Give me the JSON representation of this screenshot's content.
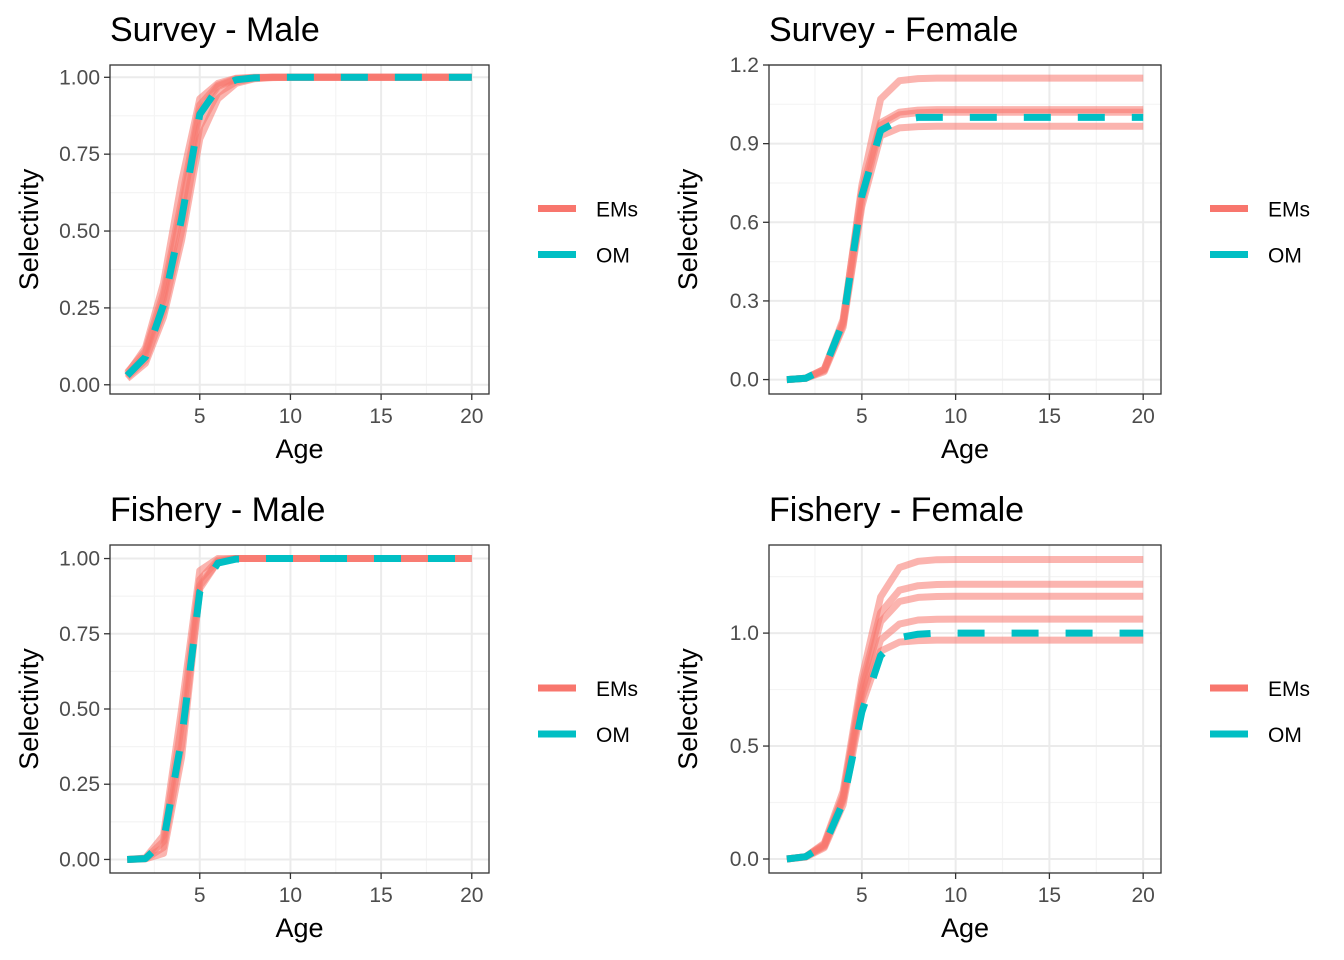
{
  "figure": {
    "colors": {
      "EMs": "#F8766D",
      "OM": "#00BFC4",
      "grid_major": "#EBEBEB",
      "grid_minor": "#F4F4F4",
      "frame": "#333333",
      "tick_text": "#4D4D4D"
    }
  },
  "chart_data": [
    {
      "type": "line",
      "title": "Survey - Male",
      "xlabel": "Age",
      "ylabel": "Selectivity",
      "xlim": [
        0.05,
        20.95
      ],
      "ylim": [
        -0.03,
        1.04
      ],
      "xticks": [
        5,
        10,
        15,
        20
      ],
      "xtick_labels": [
        "5",
        "10",
        "15",
        "20"
      ],
      "yticks": [
        0,
        0.25,
        0.5,
        0.75,
        1.0
      ],
      "ytick_labels": [
        "0.00",
        "0.25",
        "0.50",
        "0.75",
        "1.00"
      ],
      "grid": true,
      "legend": {
        "position": "right",
        "entries": [
          "EMs",
          "OM"
        ]
      },
      "x": [
        1,
        2,
        3,
        4,
        5,
        6,
        7,
        8,
        9,
        10,
        11,
        12,
        13,
        14,
        15,
        16,
        17,
        18,
        19,
        20
      ],
      "series": [
        {
          "name": "OM",
          "style": "dashed",
          "values": [
            0.03,
            0.09,
            0.26,
            0.54,
            0.88,
            0.965,
            0.992,
            0.998,
            1,
            1,
            1,
            1,
            1,
            1,
            1,
            1,
            1,
            1,
            1,
            1
          ]
        },
        {
          "name": "EMs",
          "values": [
            0.04,
            0.11,
            0.3,
            0.6,
            0.91,
            0.975,
            0.995,
            0.999,
            1,
            1,
            1,
            1,
            1,
            1,
            1,
            1,
            1,
            1,
            1,
            1
          ]
        },
        {
          "name": "EMs",
          "values": [
            0.03,
            0.1,
            0.28,
            0.57,
            0.89,
            0.97,
            0.993,
            0.998,
            1,
            1,
            1,
            1,
            1,
            1,
            1,
            1,
            1,
            1,
            1,
            1
          ]
        },
        {
          "name": "EMs",
          "values": [
            0.025,
            0.08,
            0.24,
            0.5,
            0.84,
            0.95,
            0.985,
            0.997,
            1,
            1,
            1,
            1,
            1,
            1,
            1,
            1,
            1,
            1,
            1,
            1
          ]
        },
        {
          "name": "EMs",
          "values": [
            0.02,
            0.07,
            0.22,
            0.47,
            0.8,
            0.93,
            0.98,
            0.995,
            0.999,
            1,
            1,
            1,
            1,
            1,
            1,
            1,
            1,
            1,
            1,
            1
          ]
        },
        {
          "name": "EMs",
          "values": [
            0.035,
            0.12,
            0.33,
            0.66,
            0.93,
            0.98,
            0.997,
            1,
            1,
            1,
            1,
            1,
            1,
            1,
            1,
            1,
            1,
            1,
            1,
            1
          ]
        }
      ]
    },
    {
      "type": "line",
      "title": "Survey - Female",
      "xlabel": "Age",
      "ylabel": "Selectivity",
      "xlim": [
        0.05,
        20.95
      ],
      "ylim": [
        -0.055,
        1.2
      ],
      "xticks": [
        5,
        10,
        15,
        20
      ],
      "xtick_labels": [
        "5",
        "10",
        "15",
        "20"
      ],
      "yticks": [
        0,
        0.3,
        0.6,
        0.9,
        1.2
      ],
      "ytick_labels": [
        "0.0",
        "0.3",
        "0.6",
        "0.9",
        "1.2"
      ],
      "grid": true,
      "legend": {
        "position": "right",
        "entries": [
          "EMs",
          "OM"
        ]
      },
      "x": [
        1,
        2,
        3,
        4,
        5,
        6,
        7,
        8,
        9,
        10,
        11,
        12,
        13,
        14,
        15,
        16,
        17,
        18,
        19,
        20
      ],
      "series": [
        {
          "name": "OM",
          "style": "dashed",
          "values": [
            0.0,
            0.005,
            0.04,
            0.22,
            0.7,
            0.95,
            0.99,
            1,
            1,
            1,
            1,
            1,
            1,
            1,
            1,
            1,
            1,
            1,
            1,
            1
          ]
        },
        {
          "name": "EMs",
          "values": [
            0.0,
            0.005,
            0.04,
            0.22,
            0.74,
            1.07,
            1.14,
            1.148,
            1.15,
            1.15,
            1.15,
            1.15,
            1.15,
            1.15,
            1.15,
            1.15,
            1.15,
            1.15,
            1.15,
            1.15
          ]
        },
        {
          "name": "EMs",
          "values": [
            0.0,
            0.005,
            0.04,
            0.23,
            0.72,
            0.98,
            1.02,
            1.028,
            1.03,
            1.03,
            1.03,
            1.03,
            1.03,
            1.03,
            1.03,
            1.03,
            1.03,
            1.03,
            1.03,
            1.03
          ]
        },
        {
          "name": "EMs",
          "values": [
            0.0,
            0.005,
            0.035,
            0.21,
            0.68,
            0.97,
            1.01,
            1.018,
            1.02,
            1.02,
            1.02,
            1.02,
            1.02,
            1.02,
            1.02,
            1.02,
            1.02,
            1.02,
            1.02,
            1.02
          ]
        },
        {
          "name": "EMs",
          "values": [
            0.0,
            0.005,
            0.03,
            0.2,
            0.66,
            0.93,
            0.96,
            0.965,
            0.966,
            0.966,
            0.966,
            0.966,
            0.966,
            0.966,
            0.966,
            0.966,
            0.966,
            0.966,
            0.966,
            0.966
          ]
        }
      ]
    },
    {
      "type": "line",
      "title": "Fishery - Male",
      "xlabel": "Age",
      "ylabel": "Selectivity",
      "xlim": [
        0.05,
        20.95
      ],
      "ylim": [
        -0.045,
        1.045
      ],
      "xticks": [
        5,
        10,
        15,
        20
      ],
      "xtick_labels": [
        "5",
        "10",
        "15",
        "20"
      ],
      "yticks": [
        0,
        0.25,
        0.5,
        0.75,
        1.0
      ],
      "ytick_labels": [
        "0.00",
        "0.25",
        "0.50",
        "0.75",
        "1.00"
      ],
      "grid": true,
      "legend": {
        "position": "right",
        "entries": [
          "EMs",
          "OM"
        ]
      },
      "x": [
        1,
        2,
        3,
        4,
        5,
        6,
        7,
        8,
        9,
        10,
        11,
        12,
        13,
        14,
        15,
        16,
        17,
        18,
        19,
        20
      ],
      "series": [
        {
          "name": "OM",
          "style": "dashed",
          "values": [
            0.0,
            0.003,
            0.06,
            0.4,
            0.89,
            0.985,
            0.998,
            1,
            1,
            1,
            1,
            1,
            1,
            1,
            1,
            1,
            1,
            1,
            1,
            1
          ]
        },
        {
          "name": "EMs",
          "values": [
            0.0,
            0.005,
            0.08,
            0.5,
            0.96,
            1.0,
            1,
            1,
            1,
            1,
            1,
            1,
            1,
            1,
            1,
            1,
            1,
            1,
            1,
            1
          ]
        },
        {
          "name": "EMs",
          "values": [
            0.0,
            0.004,
            0.06,
            0.45,
            0.93,
            0.995,
            1,
            1,
            1,
            1,
            1,
            1,
            1,
            1,
            1,
            1,
            1,
            1,
            1,
            1
          ]
        },
        {
          "name": "EMs",
          "values": [
            0.0,
            0.003,
            0.04,
            0.38,
            0.91,
            0.99,
            1,
            1,
            1,
            1,
            1,
            1,
            1,
            1,
            1,
            1,
            1,
            1,
            1,
            1
          ]
        },
        {
          "name": "EMs",
          "values": [
            0.0,
            0.002,
            0.02,
            0.34,
            0.9,
            0.99,
            1,
            1,
            1,
            1,
            1,
            1,
            1,
            1,
            1,
            1,
            1,
            1,
            1,
            1
          ]
        }
      ]
    },
    {
      "type": "line",
      "title": "Fishery - Female",
      "xlabel": "Age",
      "ylabel": "Selectivity",
      "xlim": [
        0.05,
        20.95
      ],
      "ylim": [
        -0.062,
        1.39
      ],
      "xticks": [
        5,
        10,
        15,
        20
      ],
      "xtick_labels": [
        "5",
        "10",
        "15",
        "20"
      ],
      "yticks": [
        0,
        0.5,
        1.0
      ],
      "ytick_labels": [
        "0.0",
        "0.5",
        "1.0"
      ],
      "grid": true,
      "legend": {
        "position": "right",
        "entries": [
          "EMs",
          "OM"
        ]
      },
      "x": [
        1,
        2,
        3,
        4,
        5,
        6,
        7,
        8,
        9,
        10,
        11,
        12,
        13,
        14,
        15,
        16,
        17,
        18,
        19,
        20
      ],
      "series": [
        {
          "name": "OM",
          "style": "dashed",
          "values": [
            0.0,
            0.01,
            0.06,
            0.25,
            0.65,
            0.9,
            0.98,
            0.995,
            1,
            1,
            1,
            1,
            1,
            1,
            1,
            1,
            1,
            1,
            1,
            1
          ]
        },
        {
          "name": "EMs",
          "values": [
            0.0,
            0.01,
            0.07,
            0.3,
            0.8,
            1.16,
            1.29,
            1.318,
            1.325,
            1.326,
            1.326,
            1.326,
            1.326,
            1.326,
            1.326,
            1.326,
            1.326,
            1.326,
            1.326,
            1.326
          ]
        },
        {
          "name": "EMs",
          "values": [
            0.0,
            0.01,
            0.065,
            0.28,
            0.77,
            1.09,
            1.19,
            1.21,
            1.215,
            1.216,
            1.216,
            1.216,
            1.216,
            1.216,
            1.216,
            1.216,
            1.216,
            1.216,
            1.216,
            1.216
          ]
        },
        {
          "name": "EMs",
          "values": [
            0.0,
            0.01,
            0.06,
            0.27,
            0.74,
            1.05,
            1.14,
            1.158,
            1.162,
            1.163,
            1.163,
            1.163,
            1.163,
            1.163,
            1.163,
            1.163,
            1.163,
            1.163,
            1.163,
            1.163
          ]
        },
        {
          "name": "EMs",
          "values": [
            0.0,
            0.01,
            0.055,
            0.26,
            0.71,
            0.97,
            1.04,
            1.058,
            1.061,
            1.062,
            1.062,
            1.062,
            1.062,
            1.062,
            1.062,
            1.062,
            1.062,
            1.062,
            1.062,
            1.062
          ]
        },
        {
          "name": "EMs",
          "values": [
            0.0,
            0.008,
            0.05,
            0.24,
            0.68,
            0.92,
            0.96,
            0.967,
            0.969,
            0.969,
            0.969,
            0.969,
            0.969,
            0.969,
            0.969,
            0.969,
            0.969,
            0.969,
            0.969,
            0.969
          ]
        }
      ]
    }
  ]
}
